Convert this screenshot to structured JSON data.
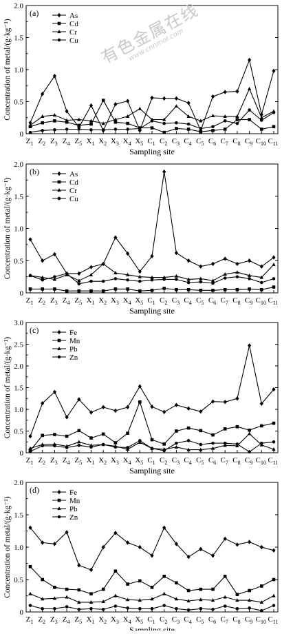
{
  "watermark": {
    "text": "有色金属在线",
    "url": "www.cnnmol.com"
  },
  "chart_data": [
    {
      "type": "line",
      "panel_label": "(a)",
      "ylabel": "Concentration of metal/(g·kg⁻¹)",
      "xlabel": "Sampling site",
      "ylim": [
        0,
        2.0
      ],
      "yticks": [
        "0",
        "0.5",
        "1.0",
        "1.5",
        "2.0"
      ],
      "legend_position": "top-left",
      "categories": [
        {
          "base": "Z",
          "sub": "1"
        },
        {
          "base": "Z",
          "sub": "2"
        },
        {
          "base": "Z",
          "sub": "3"
        },
        {
          "base": "Z",
          "sub": "4"
        },
        {
          "base": "Z",
          "sub": "5"
        },
        {
          "base": "X",
          "sub": "1"
        },
        {
          "base": "X",
          "sub": "2"
        },
        {
          "base": "X",
          "sub": "3"
        },
        {
          "base": "X",
          "sub": "4"
        },
        {
          "base": "X",
          "sub": "5"
        },
        {
          "base": "C",
          "sub": "1"
        },
        {
          "base": "C",
          "sub": "2"
        },
        {
          "base": "C",
          "sub": "3"
        },
        {
          "base": "C",
          "sub": "4"
        },
        {
          "base": "C",
          "sub": "5"
        },
        {
          "base": "C",
          "sub": "6"
        },
        {
          "base": "C",
          "sub": "7"
        },
        {
          "base": "C",
          "sub": "8"
        },
        {
          "base": "C",
          "sub": "9"
        },
        {
          "base": "C",
          "sub": "10"
        },
        {
          "base": "C",
          "sub": "11"
        }
      ],
      "series": [
        {
          "name": "As",
          "marker": "diamond",
          "values": [
            0.17,
            0.62,
            0.9,
            0.35,
            0.1,
            0.44,
            0.05,
            0.46,
            0.51,
            0.05,
            0.56,
            0.55,
            0.55,
            0.48,
            0.05,
            0.58,
            0.65,
            0.66,
            1.15,
            0.3,
            0.98
          ]
        },
        {
          "name": "Cd",
          "marker": "square",
          "values": [
            0.11,
            0.17,
            0.2,
            0.18,
            0.13,
            0.15,
            0.52,
            0.18,
            0.16,
            0.09,
            0.09,
            0.02,
            0.08,
            0.07,
            0.03,
            0.05,
            0.07,
            0.22,
            0.22,
            0.07,
            0.11
          ]
        },
        {
          "name": "Cr",
          "marker": "triangle",
          "values": [
            0.13,
            0.27,
            0.29,
            0.21,
            0.22,
            0.2,
            0.16,
            0.22,
            0.27,
            0.39,
            0.22,
            0.22,
            0.43,
            0.27,
            0.2,
            0.28,
            0.27,
            0.27,
            0.7,
            0.25,
            0.35
          ]
        },
        {
          "name": "Cu",
          "marker": "circle",
          "values": [
            0.02,
            0.05,
            0.06,
            0.07,
            0.07,
            0.06,
            0.06,
            0.07,
            0.07,
            0.08,
            0.2,
            0.16,
            0.17,
            0.15,
            0.08,
            0.11,
            0.2,
            0.16,
            0.37,
            0.21,
            0.33
          ]
        }
      ]
    },
    {
      "type": "line",
      "panel_label": "(b)",
      "ylabel": "Concentration of metal/(g·kg⁻¹)",
      "xlabel": "Sampling site",
      "ylim": [
        0,
        2.0
      ],
      "yticks": [
        "0",
        "0.5",
        "1.0",
        "1.5",
        "2.0"
      ],
      "legend_position": "top-left",
      "categories": [
        {
          "base": "Z",
          "sub": "1"
        },
        {
          "base": "Z",
          "sub": "2"
        },
        {
          "base": "Z",
          "sub": "3"
        },
        {
          "base": "Z",
          "sub": "4"
        },
        {
          "base": "Z",
          "sub": "5"
        },
        {
          "base": "X",
          "sub": "1"
        },
        {
          "base": "X",
          "sub": "2"
        },
        {
          "base": "X",
          "sub": "3"
        },
        {
          "base": "X",
          "sub": "4"
        },
        {
          "base": "X",
          "sub": "5"
        },
        {
          "base": "C",
          "sub": "1"
        },
        {
          "base": "C",
          "sub": "2"
        },
        {
          "base": "C",
          "sub": "3"
        },
        {
          "base": "C",
          "sub": "4"
        },
        {
          "base": "C",
          "sub": "5"
        },
        {
          "base": "C",
          "sub": "6"
        },
        {
          "base": "C",
          "sub": "7"
        },
        {
          "base": "C",
          "sub": "8"
        },
        {
          "base": "C",
          "sub": "9"
        },
        {
          "base": "C",
          "sub": "10"
        },
        {
          "base": "C",
          "sub": "11"
        }
      ],
      "series": [
        {
          "name": "As",
          "marker": "diamond",
          "values": [
            0.83,
            0.5,
            0.6,
            0.3,
            0.3,
            0.4,
            0.45,
            0.86,
            0.61,
            0.33,
            0.57,
            1.88,
            0.62,
            0.5,
            0.41,
            0.45,
            0.53,
            0.45,
            0.5,
            0.41,
            0.55
          ]
        },
        {
          "name": "Cd",
          "marker": "square",
          "values": [
            0.06,
            0.06,
            0.06,
            0.03,
            0.03,
            0.03,
            0.03,
            0.06,
            0.06,
            0.03,
            0.04,
            0.07,
            0.05,
            0.05,
            0.04,
            0.04,
            0.05,
            0.05,
            0.06,
            0.05,
            0.09
          ]
        },
        {
          "name": "Cr",
          "marker": "triangle",
          "values": [
            0.27,
            0.24,
            0.21,
            0.28,
            0.19,
            0.28,
            0.45,
            0.31,
            0.28,
            0.25,
            0.24,
            0.24,
            0.26,
            0.21,
            0.22,
            0.19,
            0.29,
            0.32,
            0.27,
            0.24,
            0.44
          ]
        },
        {
          "name": "Cu",
          "marker": "circle",
          "values": [
            0.27,
            0.2,
            0.25,
            0.3,
            0.14,
            0.18,
            0.18,
            0.22,
            0.2,
            0.18,
            0.2,
            0.21,
            0.21,
            0.16,
            0.17,
            0.15,
            0.23,
            0.25,
            0.22,
            0.16,
            0.22
          ]
        }
      ]
    },
    {
      "type": "line",
      "panel_label": "(c)",
      "ylabel": "Concentration of metal/(g·kg⁻¹)",
      "xlabel": "Sampling site",
      "ylim": [
        0,
        3.0
      ],
      "yticks": [
        "0",
        "0.5",
        "1.0",
        "1.5",
        "2.0",
        "2.5",
        "3.0"
      ],
      "legend_position": "top-left",
      "categories": [
        {
          "base": "Z",
          "sub": "1"
        },
        {
          "base": "Z",
          "sub": "2"
        },
        {
          "base": "Z",
          "sub": "3"
        },
        {
          "base": "Z",
          "sub": "4"
        },
        {
          "base": "Z",
          "sub": "5"
        },
        {
          "base": "X",
          "sub": "1"
        },
        {
          "base": "X",
          "sub": "2"
        },
        {
          "base": "X",
          "sub": "3"
        },
        {
          "base": "X",
          "sub": "4"
        },
        {
          "base": "X",
          "sub": "5"
        },
        {
          "base": "C",
          "sub": "1"
        },
        {
          "base": "C",
          "sub": "2"
        },
        {
          "base": "C",
          "sub": "3"
        },
        {
          "base": "C",
          "sub": "4"
        },
        {
          "base": "C",
          "sub": "5"
        },
        {
          "base": "C",
          "sub": "6"
        },
        {
          "base": "C",
          "sub": "7"
        },
        {
          "base": "C",
          "sub": "8"
        },
        {
          "base": "C",
          "sub": "9"
        },
        {
          "base": "C",
          "sub": "10"
        },
        {
          "base": "C",
          "sub": "11"
        }
      ],
      "series": [
        {
          "name": "Fe",
          "marker": "diamond",
          "values": [
            0.38,
            1.14,
            1.4,
            0.82,
            1.23,
            0.93,
            1.05,
            0.97,
            1.05,
            1.53,
            1.06,
            0.94,
            1.1,
            1.02,
            0.95,
            1.18,
            1.17,
            1.25,
            2.47,
            1.13,
            1.46
          ]
        },
        {
          "name": "Mn",
          "marker": "square",
          "values": [
            0.05,
            0.4,
            0.42,
            0.38,
            0.51,
            0.34,
            0.43,
            0.23,
            0.45,
            1.17,
            0.3,
            0.2,
            0.5,
            0.57,
            0.51,
            0.41,
            0.55,
            0.6,
            0.52,
            0.62,
            0.68
          ]
        },
        {
          "name": "Pb",
          "marker": "triangle",
          "values": [
            0.1,
            0.19,
            0.2,
            0.15,
            0.25,
            0.17,
            0.19,
            0.15,
            0.08,
            0.24,
            0.1,
            0.08,
            0.13,
            0.07,
            0.07,
            0.1,
            0.17,
            0.16,
            0.44,
            0.18,
            0.08
          ]
        },
        {
          "name": "Zn",
          "marker": "circle",
          "values": [
            0.03,
            0.16,
            0.16,
            0.12,
            0.17,
            0.13,
            0.19,
            0.13,
            0.12,
            0.28,
            0.1,
            0.05,
            0.22,
            0.28,
            0.19,
            0.22,
            0.22,
            0.2,
            0.02,
            0.22,
            0.25
          ]
        }
      ]
    },
    {
      "type": "line",
      "panel_label": "(d)",
      "ylabel": "Concentration of metal/(g·kg⁻¹)",
      "xlabel": "Sampling site",
      "ylim": [
        0,
        2.0
      ],
      "yticks": [
        "0",
        "0.5",
        "1.0",
        "1.5",
        "2.0"
      ],
      "legend_position": "top-left",
      "categories": [
        {
          "base": "Z",
          "sub": "1"
        },
        {
          "base": "Z",
          "sub": "2"
        },
        {
          "base": "Z",
          "sub": "3"
        },
        {
          "base": "Z",
          "sub": "4"
        },
        {
          "base": "Z",
          "sub": "5"
        },
        {
          "base": "X",
          "sub": "1"
        },
        {
          "base": "X",
          "sub": "2"
        },
        {
          "base": "X",
          "sub": "3"
        },
        {
          "base": "X",
          "sub": "4"
        },
        {
          "base": "X",
          "sub": "5"
        },
        {
          "base": "C",
          "sub": "1"
        },
        {
          "base": "C",
          "sub": "2"
        },
        {
          "base": "C",
          "sub": "3"
        },
        {
          "base": "C",
          "sub": "4"
        },
        {
          "base": "C",
          "sub": "5"
        },
        {
          "base": "C",
          "sub": "6"
        },
        {
          "base": "C",
          "sub": "7"
        },
        {
          "base": "C",
          "sub": "8"
        },
        {
          "base": "C",
          "sub": "9"
        },
        {
          "base": "C",
          "sub": "10"
        },
        {
          "base": "C",
          "sub": "11"
        }
      ],
      "series": [
        {
          "name": "Fe",
          "marker": "diamond",
          "values": [
            1.3,
            1.07,
            1.05,
            1.23,
            0.72,
            0.65,
            1.0,
            1.22,
            1.07,
            1.0,
            0.87,
            1.3,
            1.05,
            0.85,
            0.97,
            0.87,
            1.13,
            1.04,
            1.08,
            1.0,
            0.95
          ]
        },
        {
          "name": "Mn",
          "marker": "square",
          "values": [
            0.7,
            0.5,
            0.38,
            0.35,
            0.34,
            0.28,
            0.35,
            0.63,
            0.43,
            0.48,
            0.38,
            0.55,
            0.45,
            0.33,
            0.35,
            0.35,
            0.55,
            0.27,
            0.33,
            0.4,
            0.5
          ]
        },
        {
          "name": "Pb",
          "marker": "triangle",
          "values": [
            0.28,
            0.2,
            0.21,
            0.23,
            0.15,
            0.15,
            0.16,
            0.25,
            0.19,
            0.18,
            0.2,
            0.28,
            0.2,
            0.17,
            0.19,
            0.18,
            0.23,
            0.18,
            0.18,
            0.15,
            0.25
          ]
        },
        {
          "name": "Zn",
          "marker": "circle",
          "values": [
            0.1,
            0.05,
            0.05,
            0.08,
            0.04,
            0.05,
            0.04,
            0.09,
            0.06,
            0.05,
            0.05,
            0.1,
            0.05,
            0.03,
            0.05,
            0.04,
            0.09,
            0.05,
            0.06,
            0.02,
            0.1
          ]
        }
      ]
    }
  ]
}
